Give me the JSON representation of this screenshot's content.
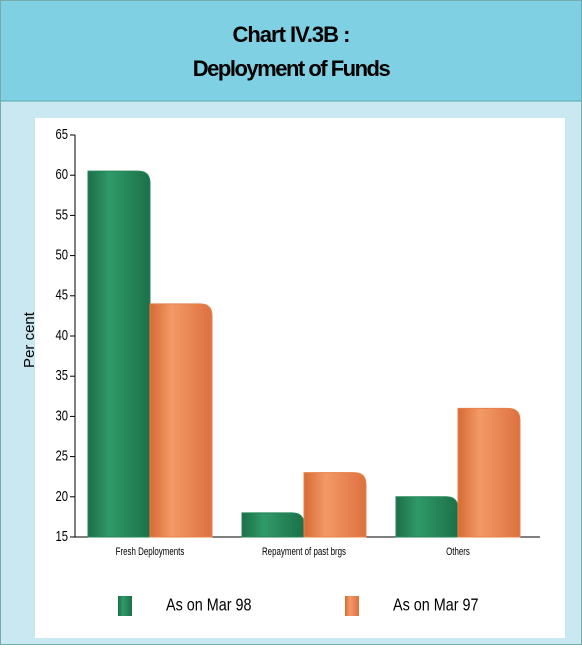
{
  "chart_data": {
    "type": "bar",
    "title": "Chart IV.3B :",
    "subtitle": "Deployment of Funds",
    "ylabel": "Per cent",
    "categories": [
      "Fresh Deployments",
      "Repayment of past brgs",
      "Others"
    ],
    "series": [
      {
        "name": "As on Mar 98",
        "color": "#23855a",
        "values": [
          60.5,
          18,
          20
        ]
      },
      {
        "name": "As on Mar 97",
        "color": "#e8804a",
        "values": [
          44,
          23,
          31
        ]
      }
    ],
    "ylim": [
      15,
      65
    ],
    "yticks": [
      15,
      20,
      25,
      30,
      35,
      40,
      45,
      50,
      55,
      60,
      65
    ]
  }
}
